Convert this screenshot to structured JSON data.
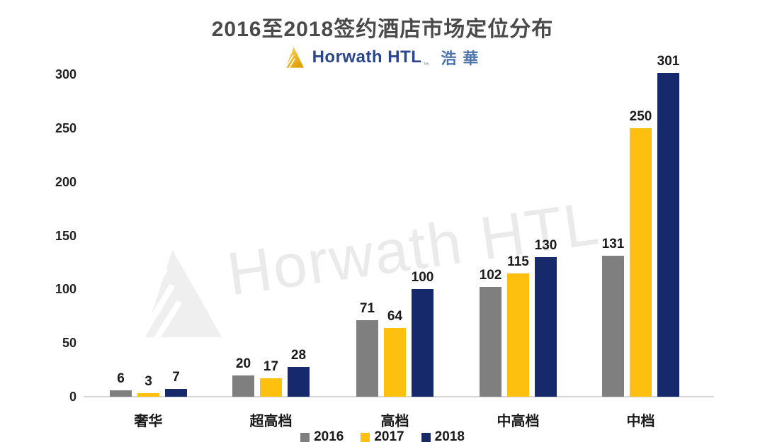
{
  "title": "2016至2018签约酒店市场定位分布",
  "logo": {
    "brand": "Horwath HTL",
    "tm": "™",
    "chinese": "浩華"
  },
  "watermark": {
    "text": "Horwath HTL"
  },
  "chart_data": {
    "type": "bar",
    "title": "2016至2018签约酒店市场定位分布",
    "categories": [
      "奢华",
      "超高档",
      "高档",
      "中高档",
      "中档"
    ],
    "series": [
      {
        "name": "2016",
        "color": "#7f7f7f",
        "values": [
          6,
          20,
          71,
          102,
          131
        ]
      },
      {
        "name": "2017",
        "color": "#fdc00f",
        "values": [
          3,
          17,
          64,
          115,
          250
        ]
      },
      {
        "name": "2018",
        "color": "#15296b",
        "values": [
          7,
          28,
          100,
          130,
          301
        ]
      }
    ],
    "xlabel": "",
    "ylabel": "",
    "ylim": [
      0,
      300
    ],
    "yticks": [
      0,
      50,
      100,
      150,
      200,
      250,
      300
    ],
    "grid": false,
    "legend_position": "bottom",
    "data_labels": true
  },
  "colors": {
    "title_text": "#4a4a4a",
    "label_text": "#1a1a1a",
    "axis_line": "#d5d5d5",
    "brand_navy": "#2a468c",
    "brand_blue": "#4d73ab",
    "logo_gold_light": "#f5d06a",
    "logo_gold_dark": "#e3a312",
    "watermark": "#eaeaea"
  }
}
